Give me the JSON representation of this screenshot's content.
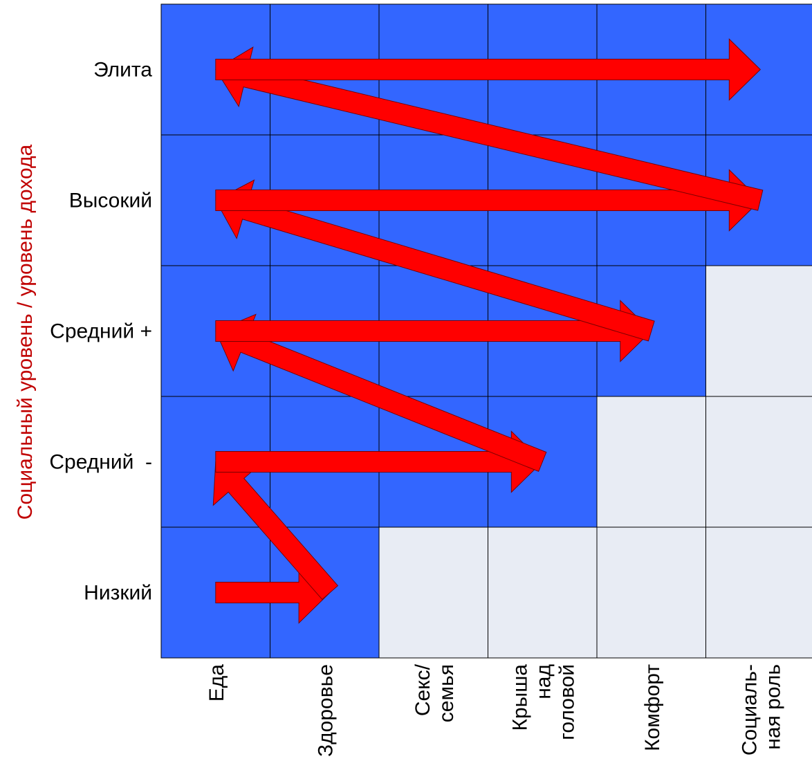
{
  "y_axis_title": "Социальный уровень / уровень дохода",
  "rows": [
    {
      "label": "Элита",
      "reached_cols": 6
    },
    {
      "label": "Высокий",
      "reached_cols": 6
    },
    {
      "label": "Средний +",
      "reached_cols": 5
    },
    {
      "label": "Средний  -",
      "reached_cols": 4
    },
    {
      "label": "Низкий",
      "reached_cols": 2
    }
  ],
  "columns": [
    {
      "lines": [
        "Еда"
      ]
    },
    {
      "lines": [
        "Здоровье"
      ]
    },
    {
      "lines": [
        "Секс/",
        "семья"
      ]
    },
    {
      "lines": [
        "Крыша",
        "над",
        "головой"
      ]
    },
    {
      "lines": [
        "Комфорт"
      ]
    },
    {
      "lines": [
        "Социаль-",
        "ная роль"
      ]
    }
  ],
  "arrows": [
    {
      "from_row": 4,
      "from_col": 0.5,
      "to_row": 4,
      "to_col": 1.55
    },
    {
      "from_row": 4,
      "from_col": 1.55,
      "to_row": 3,
      "to_col": 0.5
    },
    {
      "from_row": 3,
      "from_col": 0.5,
      "to_row": 3,
      "to_col": 3.5
    },
    {
      "from_row": 3,
      "from_col": 3.5,
      "to_row": 2,
      "to_col": 0.5
    },
    {
      "from_row": 2,
      "from_col": 0.5,
      "to_row": 2,
      "to_col": 4.5
    },
    {
      "from_row": 2,
      "from_col": 4.5,
      "to_row": 1,
      "to_col": 0.5
    },
    {
      "from_row": 1,
      "from_col": 0.5,
      "to_row": 1,
      "to_col": 5.5
    },
    {
      "from_row": 1,
      "from_col": 5.5,
      "to_row": 0,
      "to_col": 0.5
    },
    {
      "from_row": 0,
      "from_col": 0.5,
      "to_row": 0,
      "to_col": 5.5
    }
  ],
  "colors": {
    "reached": "#3366ff",
    "not_reached": "#e8ecf4",
    "arrow": "#ff0000",
    "axis_title": "#c00000"
  }
}
